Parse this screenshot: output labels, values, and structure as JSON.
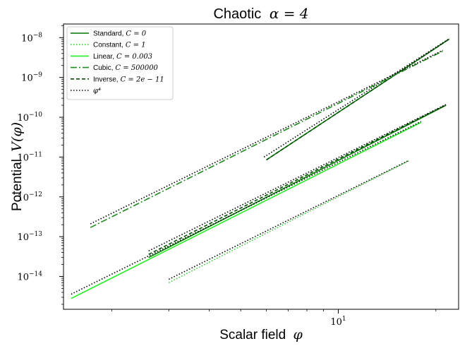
{
  "chart_data": {
    "type": "line",
    "title_text": "Chaotic",
    "title_math": "α = 4",
    "xlabel_text": "Scalar field",
    "xlabel_math": "φ",
    "ylabel_text": "Potential",
    "ylabel_math": "V(φ)",
    "x_scale": "log",
    "y_scale": "log",
    "xlim": [
      1.42,
      23.5
    ],
    "ylim": [
      1.5e-15,
      2.2e-08
    ],
    "x_ticks": [
      {
        "value": 10,
        "base": "10",
        "exp": "1"
      }
    ],
    "y_ticks": [
      {
        "value": 1e-14,
        "base": "10",
        "exp": "−14"
      },
      {
        "value": 1e-13,
        "base": "10",
        "exp": "−13"
      },
      {
        "value": 1e-12,
        "base": "10",
        "exp": "−12"
      },
      {
        "value": 1e-11,
        "base": "10",
        "exp": "−11"
      },
      {
        "value": 1e-10,
        "base": "10",
        "exp": "−10"
      },
      {
        "value": 1e-09,
        "base": "10",
        "exp": "−9"
      },
      {
        "value": 1e-08,
        "base": "10",
        "exp": "−8"
      }
    ],
    "grid": false,
    "legend_position": "top-left",
    "legend": [
      {
        "name": "Standard,",
        "math": "C = 0",
        "color": "#007a00",
        "dash": ""
      },
      {
        "name": "Constant,",
        "math": "C = 1",
        "color": "#33cc33",
        "dash": "1.5,2.5"
      },
      {
        "name": "Linear,",
        "math": "C = 0.003",
        "color": "#22ee22",
        "dash": ""
      },
      {
        "name": "Cubic,",
        "math": "C = 500000",
        "color": "#1e8c1e",
        "dash": "9,3,2,3"
      },
      {
        "name": "Inverse,",
        "math": "C = 2e − 11",
        "color": "#004d00",
        "dash": "5,3"
      },
      {
        "name": "",
        "math": "φ⁴",
        "color": "#000000",
        "dash": "1.5,2.5"
      }
    ],
    "series": [
      {
        "style": 0,
        "points": [
          [
            6.0,
            8.5e-12
          ],
          [
            22.0,
            9.2e-09
          ]
        ]
      },
      {
        "style": 4,
        "points": [
          [
            6.0,
            8.5e-12
          ],
          [
            22.0,
            9.2e-09
          ]
        ]
      },
      {
        "style": 5,
        "points": [
          [
            5.9,
            1e-11
          ],
          [
            22.0,
            9.4e-09
          ]
        ]
      },
      {
        "style": 3,
        "points": [
          [
            1.72,
            1.7e-13
          ],
          [
            21.0,
            4.6e-09
          ]
        ]
      },
      {
        "style": 5,
        "points": [
          [
            1.72,
            2.1e-13
          ],
          [
            21.0,
            4.8e-09
          ]
        ]
      },
      {
        "style": 0,
        "points": [
          [
            2.6,
            3e-14
          ],
          [
            21.5,
            2e-10
          ]
        ]
      },
      {
        "style": 4,
        "points": [
          [
            2.6,
            3.6e-14
          ],
          [
            21.5,
            2.05e-10
          ]
        ]
      },
      {
        "style": 5,
        "points": [
          [
            2.6,
            4.4e-14
          ],
          [
            21.5,
            2.1e-10
          ]
        ]
      },
      {
        "style": 2,
        "points": [
          [
            1.5,
            2.8e-15
          ],
          [
            18.0,
            7.4e-11
          ]
        ]
      },
      {
        "style": 5,
        "points": [
          [
            1.5,
            3.6e-15
          ],
          [
            18.0,
            7.8e-11
          ]
        ]
      },
      {
        "style": 1,
        "points": [
          [
            3.0,
            7e-15
          ],
          [
            16.5,
            8e-12
          ]
        ]
      },
      {
        "style": 5,
        "points": [
          [
            3.0,
            8.5e-15
          ],
          [
            16.5,
            8.2e-12
          ]
        ]
      }
    ]
  }
}
